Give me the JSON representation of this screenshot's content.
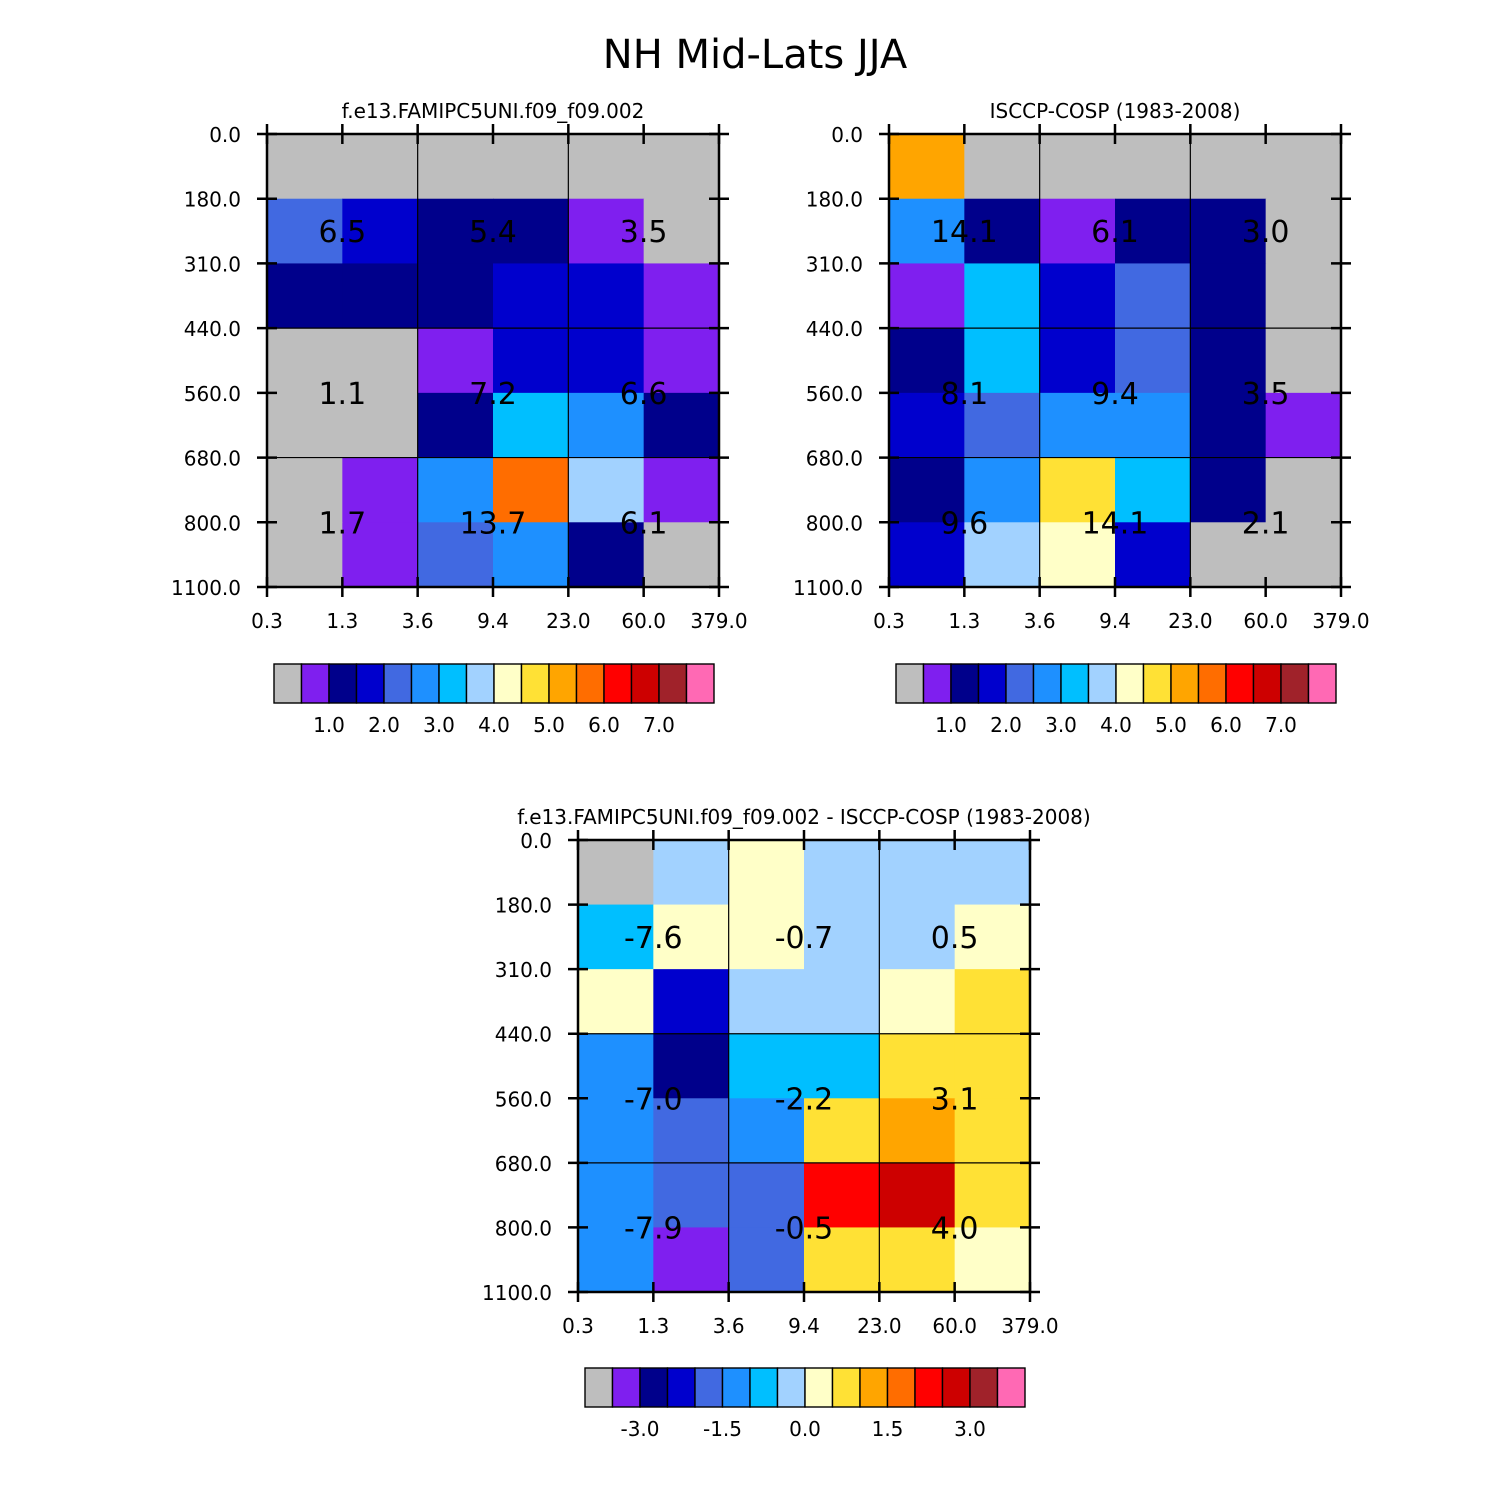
{
  "figure": {
    "title": "NH Mid-Lats JJA",
    "y_tick_labels": [
      "0.0",
      "180.0",
      "310.0",
      "440.0",
      "560.0",
      "680.0",
      "800.0",
      "1100.0"
    ],
    "x_tick_labels": [
      "0.3",
      "1.3",
      "3.6",
      "9.4",
      "23.0",
      "60.0",
      "379.0"
    ]
  },
  "palette": [
    "#bebebe",
    "#7f1fef",
    "#00008b",
    "#0000cd",
    "#4169e1",
    "#1e90ff",
    "#00bfff",
    "#a2d2ff",
    "#ffffc8",
    "#ffe135",
    "#ffa500",
    "#ff6d00",
    "#ff0000",
    "#cd0000",
    "#a0222a",
    "#ff69b4"
  ],
  "chart_data": [
    {
      "type": "heatmap",
      "title": "f.e13.FAMIPC5UNI.f09_f09.002",
      "color_index_grid": [
        [
          0,
          0,
          0,
          0,
          0,
          0
        ],
        [
          4,
          3,
          2,
          2,
          1,
          0
        ],
        [
          2,
          2,
          2,
          3,
          3,
          1
        ],
        [
          0,
          0,
          1,
          3,
          3,
          1
        ],
        [
          0,
          0,
          2,
          6,
          5,
          2
        ],
        [
          0,
          1,
          5,
          11,
          7,
          1
        ],
        [
          0,
          1,
          4,
          5,
          2,
          0
        ]
      ],
      "annotations": [
        {
          "text": "6.5",
          "col": 0,
          "row": 0
        },
        {
          "text": "5.4",
          "col": 1,
          "row": 0
        },
        {
          "text": "3.5",
          "col": 2,
          "row": 0
        },
        {
          "text": "1.1",
          "col": 0,
          "row": 1
        },
        {
          "text": "7.2",
          "col": 1,
          "row": 1
        },
        {
          "text": "6.6",
          "col": 2,
          "row": 1
        },
        {
          "text": "1.7",
          "col": 0,
          "row": 2
        },
        {
          "text": "13.7",
          "col": 1,
          "row": 2
        },
        {
          "text": "6.1",
          "col": 2,
          "row": 2
        }
      ],
      "colorbar_labels": [
        "1.0",
        "2.0",
        "3.0",
        "4.0",
        "5.0",
        "6.0",
        "7.0"
      ]
    },
    {
      "type": "heatmap",
      "title": "ISCCP-COSP (1983-2008)",
      "color_index_grid": [
        [
          10,
          0,
          0,
          0,
          0,
          0
        ],
        [
          5,
          2,
          1,
          2,
          2,
          0
        ],
        [
          1,
          6,
          3,
          4,
          2,
          0
        ],
        [
          2,
          6,
          3,
          4,
          2,
          0
        ],
        [
          3,
          4,
          5,
          5,
          2,
          1
        ],
        [
          2,
          5,
          9,
          6,
          2,
          0
        ],
        [
          3,
          7,
          8,
          3,
          0,
          0
        ]
      ],
      "annotations": [
        {
          "text": "14.1",
          "col": 0,
          "row": 0
        },
        {
          "text": "6.1",
          "col": 1,
          "row": 0
        },
        {
          "text": "3.0",
          "col": 2,
          "row": 0
        },
        {
          "text": "8.1",
          "col": 0,
          "row": 1
        },
        {
          "text": "9.4",
          "col": 1,
          "row": 1
        },
        {
          "text": "3.5",
          "col": 2,
          "row": 1
        },
        {
          "text": "9.6",
          "col": 0,
          "row": 2
        },
        {
          "text": "14.1",
          "col": 1,
          "row": 2
        },
        {
          "text": "2.1",
          "col": 2,
          "row": 2
        }
      ],
      "colorbar_labels": [
        "1.0",
        "2.0",
        "3.0",
        "4.0",
        "5.0",
        "6.0",
        "7.0"
      ]
    },
    {
      "type": "heatmap",
      "title": "f.e13.FAMIPC5UNI.f09_f09.002 - ISCCP-COSP (1983-2008)",
      "color_index_grid": [
        [
          0,
          7,
          8,
          7,
          7,
          7
        ],
        [
          6,
          8,
          8,
          7,
          7,
          8
        ],
        [
          8,
          3,
          7,
          7,
          8,
          9
        ],
        [
          5,
          2,
          6,
          6,
          9,
          9
        ],
        [
          5,
          4,
          5,
          9,
          10,
          9
        ],
        [
          5,
          4,
          4,
          12,
          13,
          9
        ],
        [
          5,
          1,
          4,
          9,
          9,
          8
        ]
      ],
      "annotations": [
        {
          "text": "-7.6",
          "col": 0,
          "row": 0
        },
        {
          "text": "-0.7",
          "col": 1,
          "row": 0
        },
        {
          "text": "0.5",
          "col": 2,
          "row": 0
        },
        {
          "text": "-7.0",
          "col": 0,
          "row": 1
        },
        {
          "text": "-2.2",
          "col": 1,
          "row": 1
        },
        {
          "text": "3.1",
          "col": 2,
          "row": 1
        },
        {
          "text": "-7.9",
          "col": 0,
          "row": 2
        },
        {
          "text": "-0.5",
          "col": 1,
          "row": 2
        },
        {
          "text": "4.0",
          "col": 2,
          "row": 2
        }
      ],
      "colorbar_labels": [
        "-3.0",
        "-1.5",
        "0.0",
        "1.5",
        "3.0"
      ]
    }
  ]
}
